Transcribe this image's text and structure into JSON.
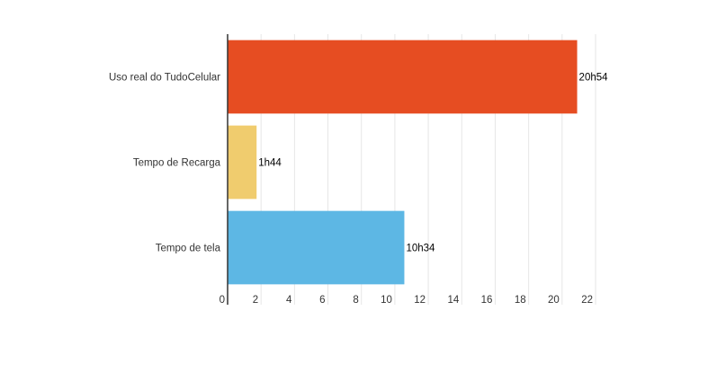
{
  "chart_data": {
    "type": "bar",
    "orientation": "horizontal",
    "title": "",
    "xlabel": "",
    "ylabel": "",
    "categories": [
      "Uso real do TudoCelular",
      "Tempo de Recarga",
      "Tempo de tela"
    ],
    "values": [
      20.9,
      1.733,
      10.567
    ],
    "value_labels": [
      "20h54",
      "1h44",
      "10h34"
    ],
    "colors": [
      "#e64d22",
      "#f0cc6e",
      "#5db7e4"
    ],
    "xlim": [
      0,
      22
    ],
    "xticks": [
      "0",
      "2",
      "4",
      "6",
      "8",
      "10",
      "12",
      "14",
      "16",
      "18",
      "20",
      "22"
    ],
    "grid": true,
    "legend": "none"
  }
}
